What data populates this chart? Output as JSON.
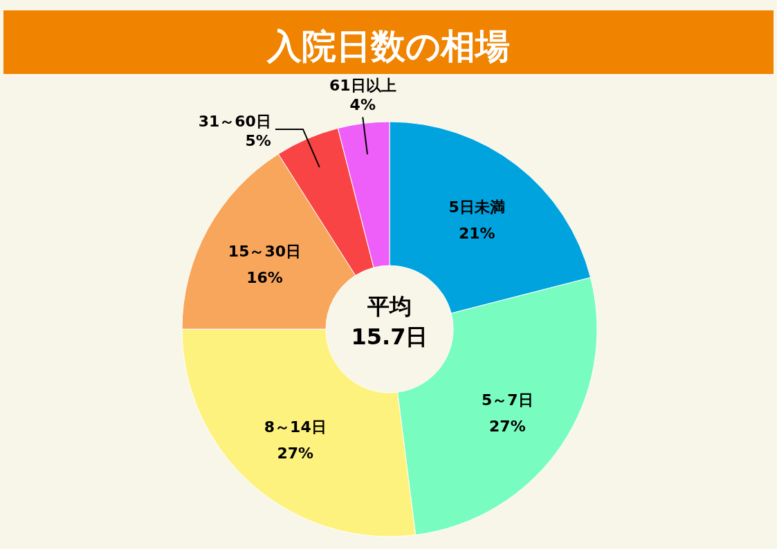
{
  "chart_data": {
    "type": "donut",
    "title": "入院日数の相場",
    "categories": [
      "5日未満",
      "5～7日",
      "8～14日",
      "15～30日",
      "31～60日",
      "61日以上"
    ],
    "values": [
      21,
      27,
      27,
      16,
      5,
      4
    ],
    "value_labels": [
      "21%",
      "27%",
      "27%",
      "16%",
      "5%",
      "4%"
    ],
    "colors": [
      "#00a3de",
      "#78fcc0",
      "#fef27e",
      "#f8a65c",
      "#f84444",
      "#ee5ef8"
    ],
    "annotations": [
      "平均",
      "15.7日"
    ]
  }
}
